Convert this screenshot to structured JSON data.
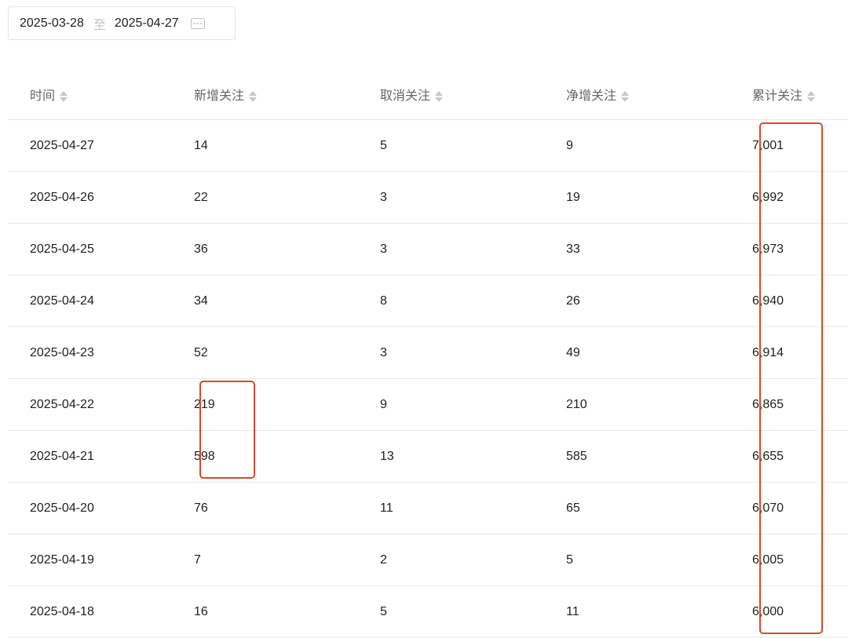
{
  "date_range": {
    "start": "2025-03-28",
    "separator": "至",
    "end": "2025-04-27",
    "icon": "calendar-icon"
  },
  "columns": [
    "时间",
    "新增关注",
    "取消关注",
    "净增关注",
    "累计关注"
  ],
  "rows": [
    [
      "2025-04-27",
      "14",
      "5",
      "9",
      "7,001"
    ],
    [
      "2025-04-26",
      "22",
      "3",
      "19",
      "6,992"
    ],
    [
      "2025-04-25",
      "36",
      "3",
      "33",
      "6,973"
    ],
    [
      "2025-04-24",
      "34",
      "8",
      "26",
      "6,940"
    ],
    [
      "2025-04-23",
      "52",
      "3",
      "49",
      "6,914"
    ],
    [
      "2025-04-22",
      "219",
      "9",
      "210",
      "6,865"
    ],
    [
      "2025-04-21",
      "598",
      "13",
      "585",
      "6,655"
    ],
    [
      "2025-04-20",
      "76",
      "11",
      "65",
      "6,070"
    ],
    [
      "2025-04-19",
      "7",
      "2",
      "5",
      "6,005"
    ],
    [
      "2025-04-18",
      "16",
      "5",
      "11",
      "6,000"
    ]
  ],
  "highlight_color": "#d9482b"
}
